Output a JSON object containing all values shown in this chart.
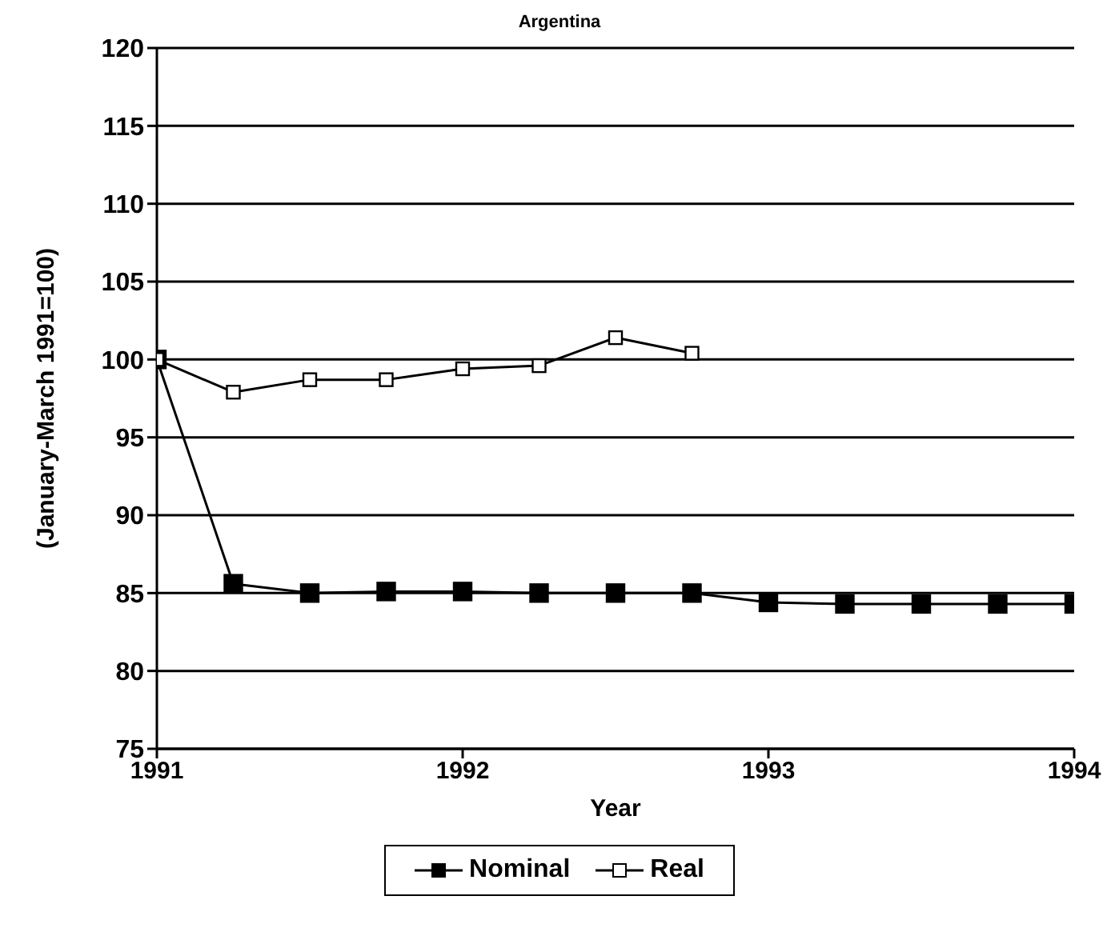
{
  "chart_data": {
    "type": "line",
    "title": "Argentina",
    "xlabel": "Year",
    "ylabel": "(January-March 1991=100)",
    "x": [
      1991,
      1991.25,
      1991.5,
      1991.75,
      1992,
      1992.25,
      1992.5,
      1992.75,
      1993,
      1993.25,
      1993.5,
      1993.75,
      1994
    ],
    "series": [
      {
        "name": "Nominal",
        "color": "#000000",
        "values": [
          100,
          85.6,
          85,
          85.1,
          85.1,
          85,
          85,
          85,
          84.4,
          84.3,
          84.3,
          84.3,
          84.3
        ]
      },
      {
        "name": "Real",
        "color": "#000000",
        "values": [
          100,
          97.9,
          98.7,
          98.7,
          99.4,
          99.6,
          101.4,
          100.4,
          null,
          null,
          null,
          null,
          null
        ]
      }
    ],
    "xlim": [
      1991,
      1994
    ],
    "xticks": [
      1991,
      1992,
      1993,
      1994
    ],
    "ylim": [
      75,
      120
    ],
    "yticks": [
      75,
      80,
      85,
      90,
      95,
      100,
      105,
      110,
      115,
      120
    ],
    "grid": "y",
    "legend": "bottom",
    "marker": "square",
    "line_style": "solid"
  }
}
